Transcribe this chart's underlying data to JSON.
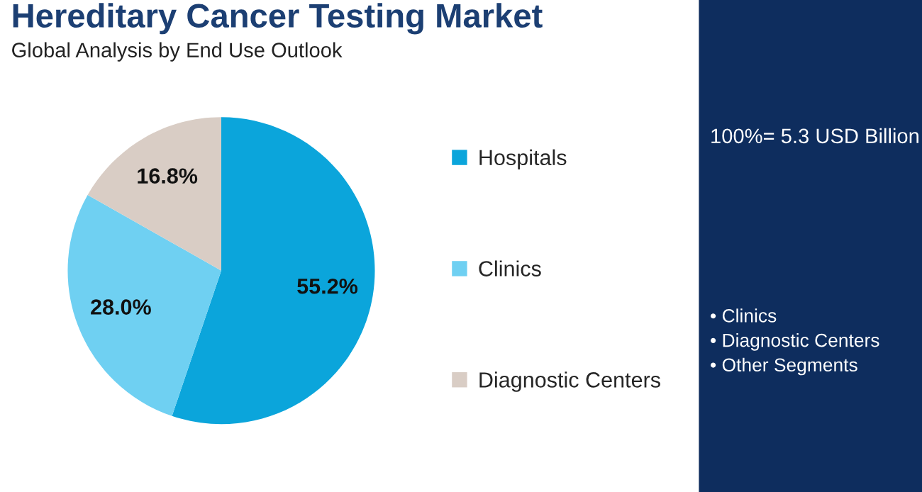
{
  "chart_data": {
    "type": "pie",
    "title": "Hereditary Cancer Testing Market",
    "subtitle": "Global Analysis by End Use Outlook",
    "categories": [
      "Hospitals",
      "Clinics",
      "Diagnostic Centers"
    ],
    "values": [
      55.2,
      28.0,
      16.8
    ],
    "value_labels": [
      "55.2%",
      "28.0%",
      "16.8%"
    ],
    "colors": [
      "#0ba5db",
      "#6fd0f2",
      "#d9cdc5"
    ],
    "legend": "right",
    "annotations": [
      "100%= 5.3 USD Billion",
      "• Clinics",
      "• Diagnostic Centers",
      "• Other Segments"
    ]
  }
}
